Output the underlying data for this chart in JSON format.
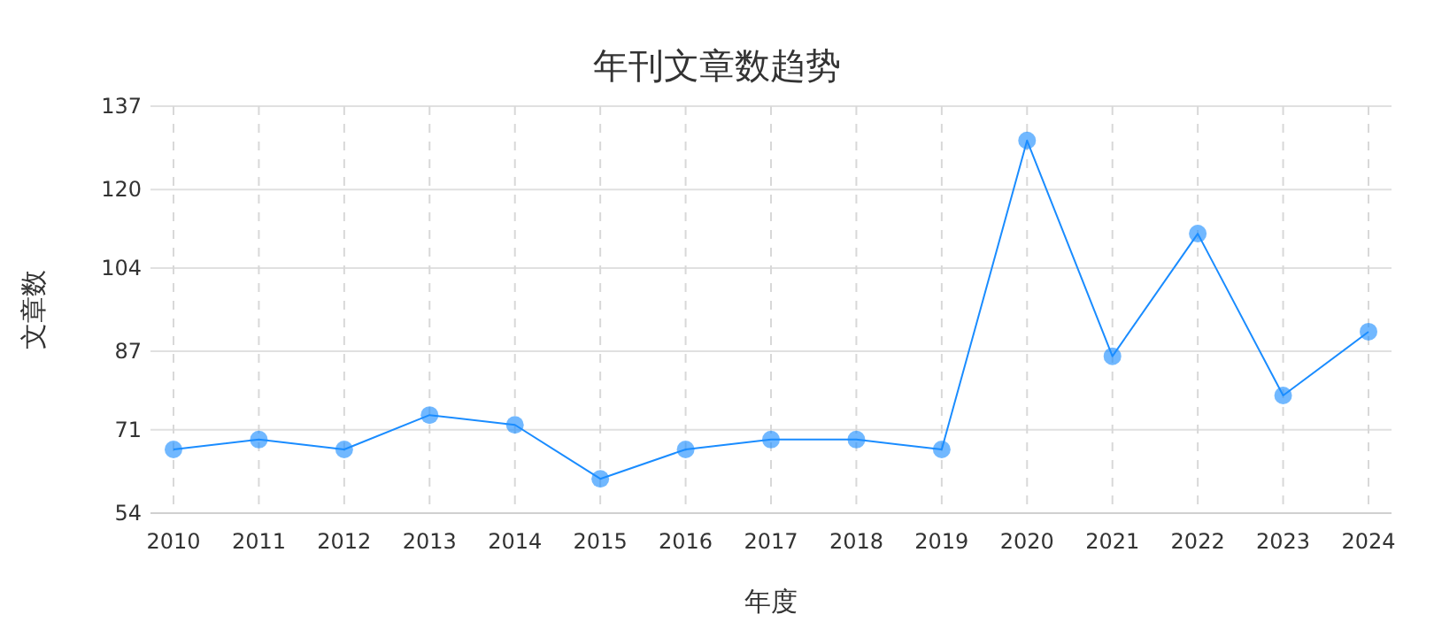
{
  "chart_data": {
    "type": "line",
    "title": "年刊文章数趋势",
    "xlabel": "年度",
    "ylabel": "文章数",
    "categories": [
      "2010",
      "2011",
      "2012",
      "2013",
      "2014",
      "2015",
      "2016",
      "2017",
      "2018",
      "2019",
      "2020",
      "2021",
      "2022",
      "2023",
      "2024"
    ],
    "series": [
      {
        "color": "#1a8cff",
        "values": [
          67,
          69,
          67,
          74,
          72,
          61,
          67,
          69,
          69,
          67,
          130,
          86,
          111,
          78,
          91
        ]
      }
    ],
    "ylim": [
      54,
      137
    ],
    "yticks": [
      54,
      71,
      87,
      104,
      120,
      137
    ],
    "grid": true,
    "marker": "circle",
    "line_style": "solid"
  }
}
